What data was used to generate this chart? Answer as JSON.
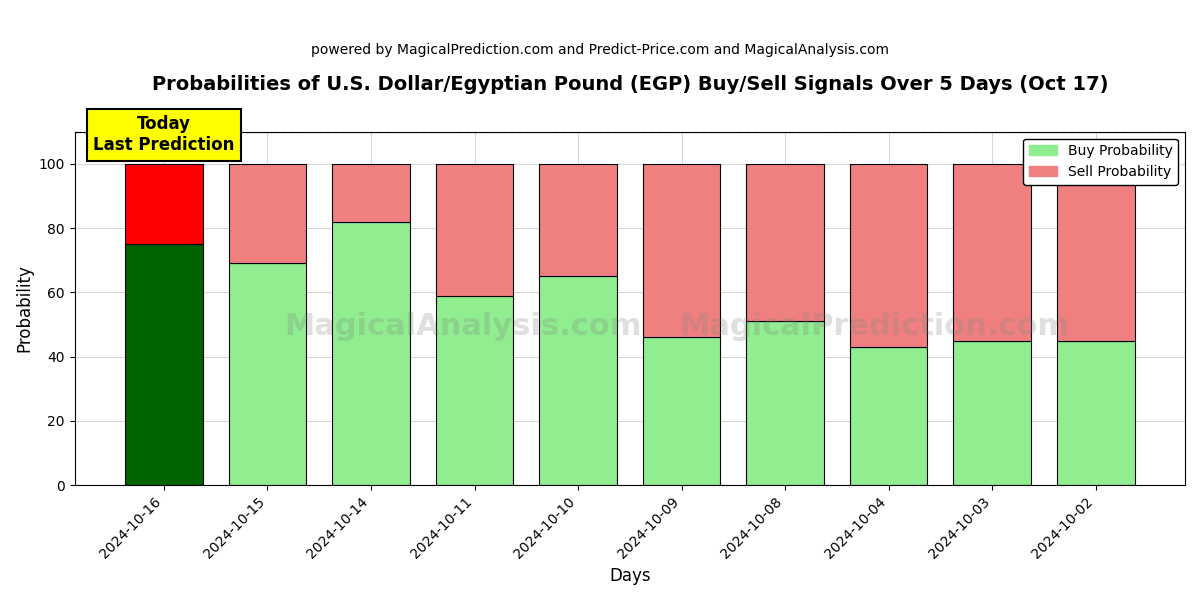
{
  "title": "Probabilities of U.S. Dollar/Egyptian Pound (EGP) Buy/Sell Signals Over 5 Days (Oct 17)",
  "subtitle": "powered by MagicalPrediction.com and Predict-Price.com and MagicalAnalysis.com",
  "xlabel": "Days",
  "ylabel": "Probability",
  "categories": [
    "2024-10-16",
    "2024-10-15",
    "2024-10-14",
    "2024-10-11",
    "2024-10-10",
    "2024-10-09",
    "2024-10-08",
    "2024-10-04",
    "2024-10-03",
    "2024-10-02"
  ],
  "buy_values": [
    75,
    69,
    82,
    59,
    65,
    46,
    51,
    43,
    45,
    45
  ],
  "sell_values": [
    25,
    31,
    18,
    41,
    35,
    54,
    49,
    57,
    55,
    55
  ],
  "today_buy_color": "#006400",
  "today_sell_color": "#ff0000",
  "other_buy_color": "#90EE90",
  "other_sell_color": "#F08080",
  "today_annotation_bg": "#ffff00",
  "today_annotation_text": "Today\nLast Prediction",
  "legend_buy_label": "Buy Probability",
  "legend_sell_label": "Sell Probability",
  "ylim": [
    0,
    110
  ],
  "dashed_line_y": 110,
  "watermark_texts": [
    "MagicalAnalysis.com",
    "MagicalPrediction.com"
  ],
  "background_color": "#ffffff",
  "grid_color": "#aaaaaa"
}
